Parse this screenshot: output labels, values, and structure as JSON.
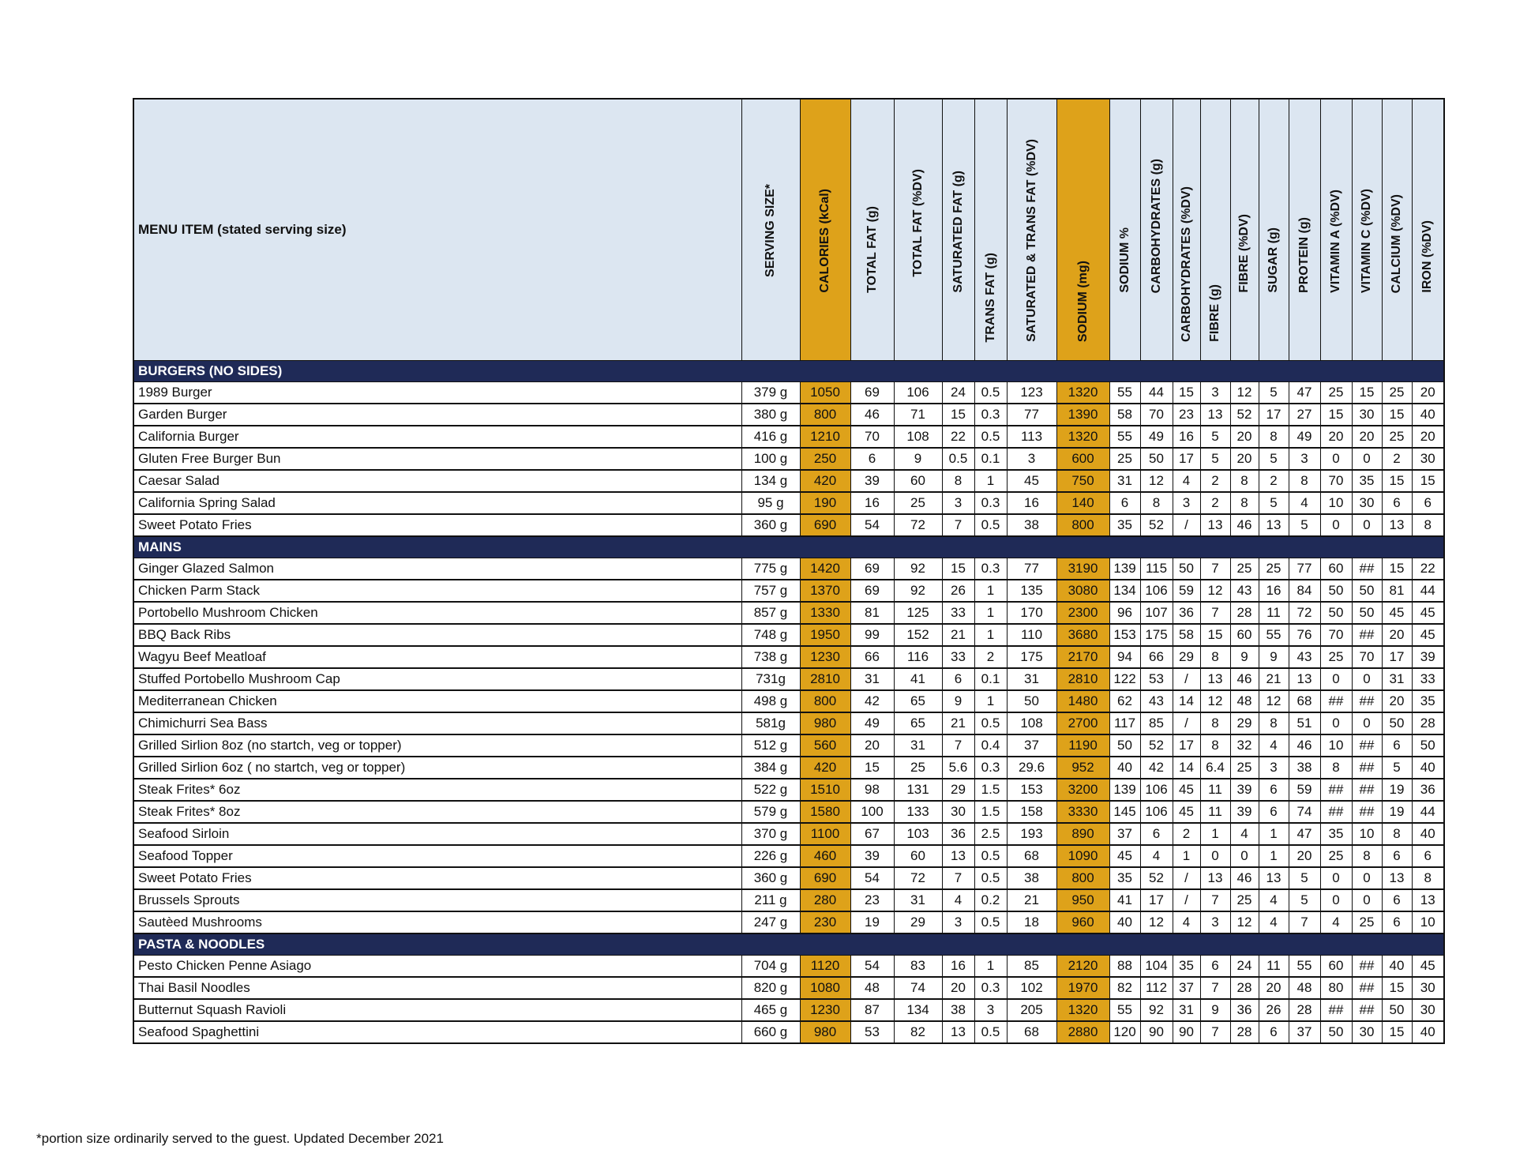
{
  "header": {
    "name": "MENU ITEM (stated serving size)",
    "columns": [
      "SERVING SIZE*",
      "CALORIES (kCal)",
      "TOTAL FAT (g)",
      "TOTAL FAT (%DV)",
      "SATURATED FAT (g)",
      "TRANS FAT (g)",
      "SATURATED & TRANS FAT (%DV)",
      "SODIUM (mg)",
      "SODIUM %",
      "CARBOHYDRATES (g)",
      "CARBOHYDRATES (%DV)",
      "FIBRE (g)",
      "FIBRE (%DV)",
      "SUGAR (g)",
      "PROTEIN (g)",
      "VITAMIN A (%DV)",
      "VITAMIN C (%DV)",
      "CALCIUM (%DV)",
      "IRON (%DV)"
    ]
  },
  "highlight_color": "#dea21a",
  "section_color": "#1f2a57",
  "header_color": "#dce6f1",
  "sections": [
    {
      "title": "BURGERS (NO SIDES)",
      "rows": [
        [
          "1989 Burger",
          "379 g",
          "1050",
          "69",
          "106",
          "24",
          "0.5",
          "123",
          "1320",
          "55",
          "44",
          "15",
          "3",
          "12",
          "5",
          "47",
          "25",
          "15",
          "25",
          "20"
        ],
        [
          "Garden Burger",
          "380 g",
          "800",
          "46",
          "71",
          "15",
          "0.3",
          "77",
          "1390",
          "58",
          "70",
          "23",
          "13",
          "52",
          "17",
          "27",
          "15",
          "30",
          "15",
          "40"
        ],
        [
          "California Burger",
          "416 g",
          "1210",
          "70",
          "108",
          "22",
          "0.5",
          "113",
          "1320",
          "55",
          "49",
          "16",
          "5",
          "20",
          "8",
          "49",
          "20",
          "20",
          "25",
          "20"
        ],
        [
          "Gluten Free Burger Bun",
          "100 g",
          "250",
          "6",
          "9",
          "0.5",
          "0.1",
          "3",
          "600",
          "25",
          "50",
          "17",
          "5",
          "20",
          "5",
          "3",
          "0",
          "0",
          "2",
          "30"
        ],
        [
          "Caesar Salad",
          "134 g",
          "420",
          "39",
          "60",
          "8",
          "1",
          "45",
          "750",
          "31",
          "12",
          "4",
          "2",
          "8",
          "2",
          "8",
          "70",
          "35",
          "15",
          "15"
        ],
        [
          "California Spring Salad",
          "95 g",
          "190",
          "16",
          "25",
          "3",
          "0.3",
          "16",
          "140",
          "6",
          "8",
          "3",
          "2",
          "8",
          "5",
          "4",
          "10",
          "30",
          "6",
          "6"
        ],
        [
          "Sweet Potato Fries",
          "360 g",
          "690",
          "54",
          "72",
          "7",
          "0.5",
          "38",
          "800",
          "35",
          "52",
          "/",
          "13",
          "46",
          "13",
          "5",
          "0",
          "0",
          "13",
          "8"
        ]
      ]
    },
    {
      "title": "MAINS",
      "rows": [
        [
          "Ginger Glazed Salmon",
          "775 g",
          "1420",
          "69",
          "92",
          "15",
          "0.3",
          "77",
          "3190",
          "139",
          "115",
          "50",
          "7",
          "25",
          "25",
          "77",
          "60",
          "##",
          "15",
          "22"
        ],
        [
          "Chicken Parm Stack",
          "757 g",
          "1370",
          "69",
          "92",
          "26",
          "1",
          "135",
          "3080",
          "134",
          "106",
          "59",
          "12",
          "43",
          "16",
          "84",
          "50",
          "50",
          "81",
          "44"
        ],
        [
          "Portobello Mushroom Chicken",
          "857 g",
          "1330",
          "81",
          "125",
          "33",
          "1",
          "170",
          "2300",
          "96",
          "107",
          "36",
          "7",
          "28",
          "11",
          "72",
          "50",
          "50",
          "45",
          "45"
        ],
        [
          "BBQ Back Ribs",
          "748 g",
          "1950",
          "99",
          "152",
          "21",
          "1",
          "110",
          "3680",
          "153",
          "175",
          "58",
          "15",
          "60",
          "55",
          "76",
          "70",
          "##",
          "20",
          "45"
        ],
        [
          "Wagyu Beef Meatloaf",
          "738 g",
          "1230",
          "66",
          "116",
          "33",
          "2",
          "175",
          "2170",
          "94",
          "66",
          "29",
          "8",
          "9",
          "9",
          "43",
          "25",
          "70",
          "17",
          "39"
        ],
        [
          "Stuffed Portobello Mushroom Cap",
          "731g",
          "2810",
          "31",
          "41",
          "6",
          "0.1",
          "31",
          "2810",
          "122",
          "53",
          "/",
          "13",
          "46",
          "21",
          "13",
          "0",
          "0",
          "31",
          "33"
        ],
        [
          "Mediterranean Chicken",
          "498 g",
          "800",
          "42",
          "65",
          "9",
          "1",
          "50",
          "1480",
          "62",
          "43",
          "14",
          "12",
          "48",
          "12",
          "68",
          "##",
          "##",
          "20",
          "35"
        ],
        [
          "Chimichurri Sea Bass",
          "581g",
          "980",
          "49",
          "65",
          "21",
          "0.5",
          "108",
          "2700",
          "117",
          "85",
          "/",
          "8",
          "29",
          "8",
          "51",
          "0",
          "0",
          "50",
          "28"
        ],
        [
          "Grilled Sirlion 8oz (no startch, veg or  topper)",
          "512 g",
          "560",
          "20",
          "31",
          "7",
          "0.4",
          "37",
          "1190",
          "50",
          "52",
          "17",
          "8",
          "32",
          "4",
          "46",
          "10",
          "##",
          "6",
          "50"
        ],
        [
          "Grilled Sirlion 6oz ( no startch, veg or topper)",
          "384 g",
          "420",
          "15",
          "25",
          "5.6",
          "0.3",
          "29.6",
          "952",
          "40",
          "42",
          "14",
          "6.4",
          "25",
          "3",
          "38",
          "8",
          "##",
          "5",
          "40"
        ],
        [
          "Steak Frites* 6oz",
          "522 g",
          "1510",
          "98",
          "131",
          "29",
          "1.5",
          "153",
          "3200",
          "139",
          "106",
          "45",
          "11",
          "39",
          "6",
          "59",
          "##",
          "##",
          "19",
          "36"
        ],
        [
          "Steak Frites* 8oz",
          "579 g",
          "1580",
          "100",
          "133",
          "30",
          "1.5",
          "158",
          "3330",
          "145",
          "106",
          "45",
          "11",
          "39",
          "6",
          "74",
          "##",
          "##",
          "19",
          "44"
        ],
        [
          "Seafood Sirloin",
          "370 g",
          "1100",
          "67",
          "103",
          "36",
          "2.5",
          "193",
          "890",
          "37",
          "6",
          "2",
          "1",
          "4",
          "1",
          "47",
          "35",
          "10",
          "8",
          "40"
        ],
        [
          "Seafood Topper",
          "226 g",
          "460",
          "39",
          "60",
          "13",
          "0.5",
          "68",
          "1090",
          "45",
          "4",
          "1",
          "0",
          "0",
          "1",
          "20",
          "25",
          "8",
          "6",
          "6"
        ],
        [
          "Sweet Potato Fries",
          "360 g",
          "690",
          "54",
          "72",
          "7",
          "0.5",
          "38",
          "800",
          "35",
          "52",
          "/",
          "13",
          "46",
          "13",
          "5",
          "0",
          "0",
          "13",
          "8"
        ],
        [
          "Brussels Sprouts",
          "211 g",
          "280",
          "23",
          "31",
          "4",
          "0.2",
          "21",
          "950",
          "41",
          "17",
          "/",
          "7",
          "25",
          "4",
          "5",
          "0",
          "0",
          "6",
          "13"
        ],
        [
          "Sautèed Mushrooms",
          "247 g",
          "230",
          "19",
          "29",
          "3",
          "0.5",
          "18",
          "960",
          "40",
          "12",
          "4",
          "3",
          "12",
          "4",
          "7",
          "4",
          "25",
          "6",
          "10"
        ]
      ]
    },
    {
      "title": "PASTA & NOODLES",
      "rows": [
        [
          "Pesto Chicken Penne Asiago",
          "704 g",
          "1120",
          "54",
          "83",
          "16",
          "1",
          "85",
          "2120",
          "88",
          "104",
          "35",
          "6",
          "24",
          "11",
          "55",
          "60",
          "##",
          "40",
          "45"
        ],
        [
          "Thai Basil Noodles",
          "820 g",
          "1080",
          "48",
          "74",
          "20",
          "0.3",
          "102",
          "1970",
          "82",
          "112",
          "37",
          "7",
          "28",
          "20",
          "48",
          "80",
          "##",
          "15",
          "30"
        ],
        [
          "Butternut Squash Ravioli",
          "465 g",
          "1230",
          "87",
          "134",
          "38",
          "3",
          "205",
          "1320",
          "55",
          "92",
          "31",
          "9",
          "36",
          "26",
          "28",
          "##",
          "##",
          "50",
          "30"
        ],
        [
          "Seafood Spaghettini",
          "660 g",
          "980",
          "53",
          "82",
          "13",
          "0.5",
          "68",
          "2880",
          "120",
          "90",
          "90",
          "7",
          "28",
          "6",
          "37",
          "50",
          "30",
          "15",
          "40"
        ]
      ]
    }
  ],
  "footnote": "*portion size ordinarily served to the guest. Updated December 2021"
}
